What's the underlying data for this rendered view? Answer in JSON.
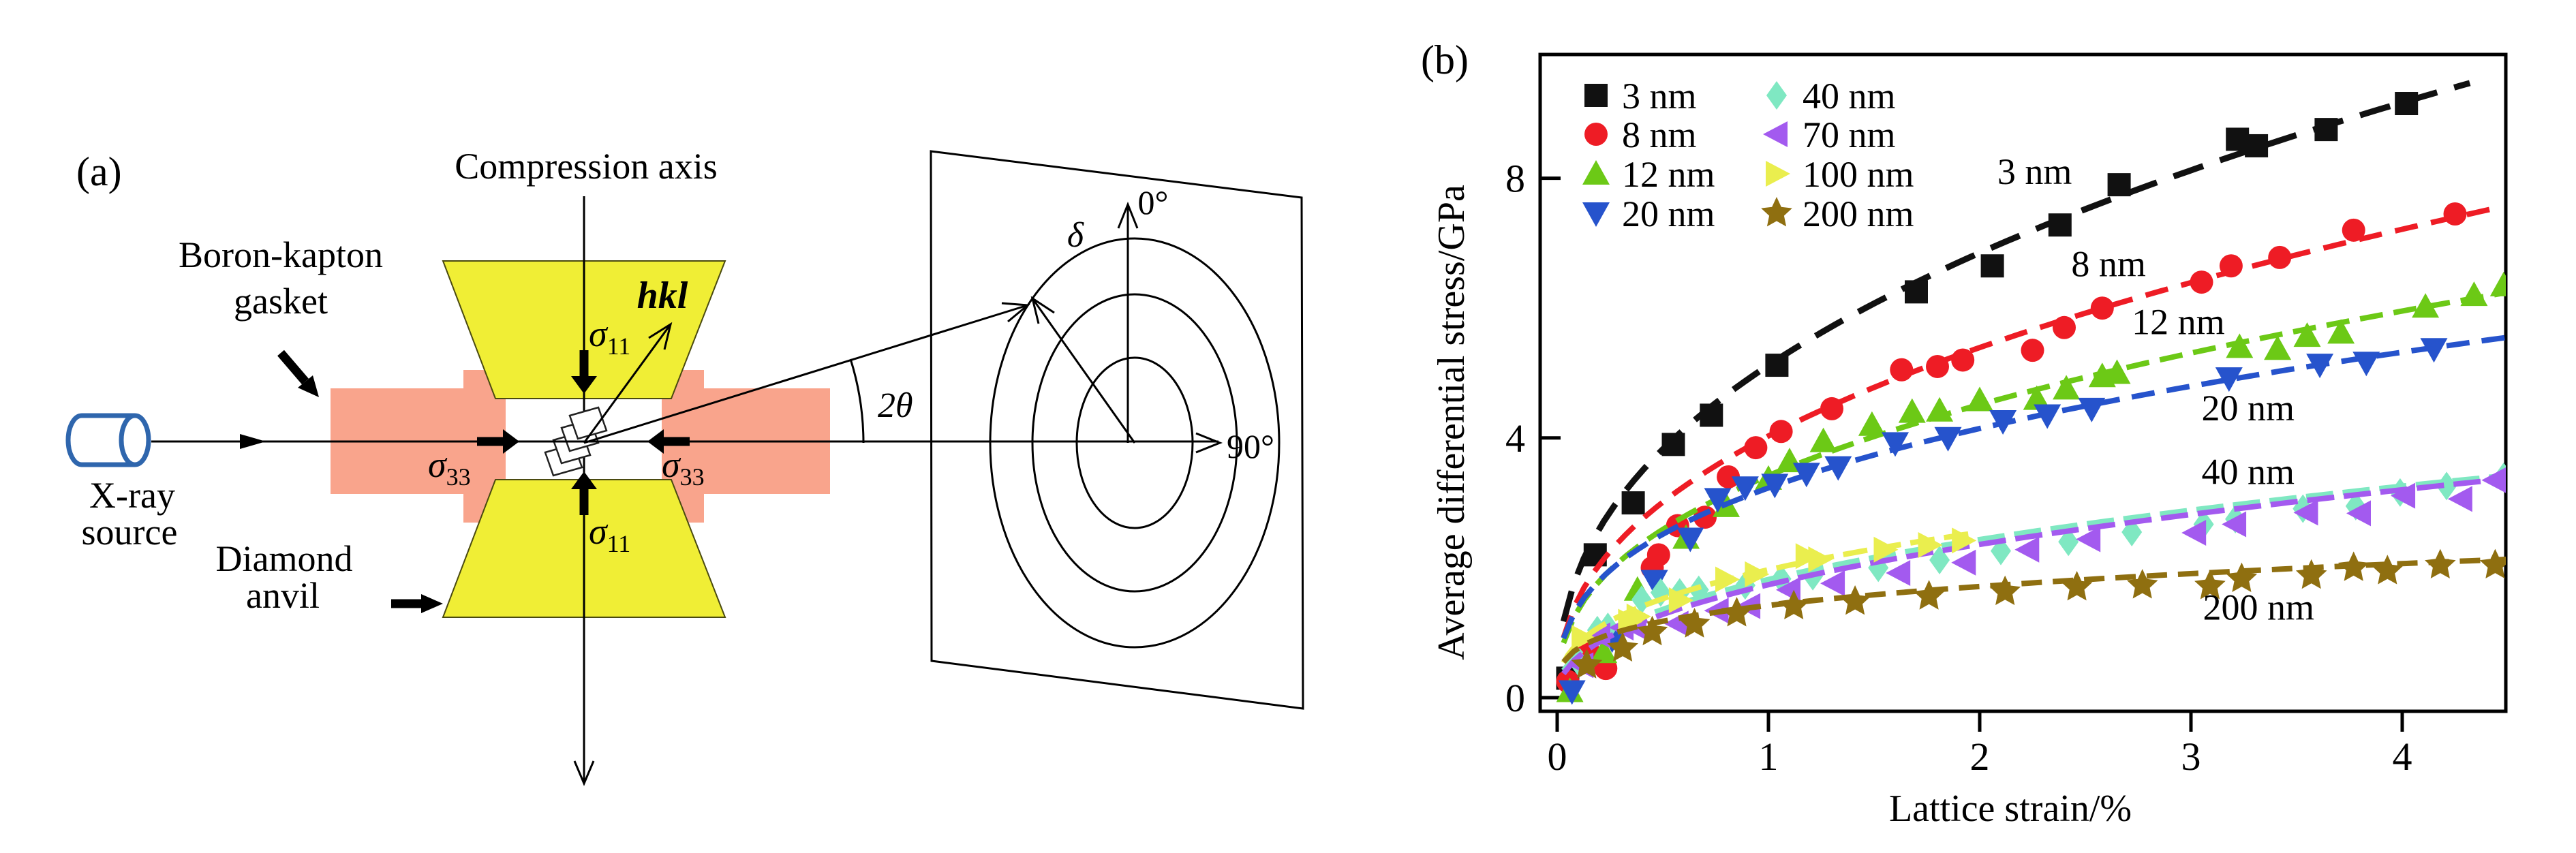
{
  "figure": {
    "panel_a_label": "(a)",
    "panel_b_label": "(b)"
  },
  "diagram": {
    "compression_axis": "Compression axis",
    "gasket_label_line1": "Boron-kapton",
    "gasket_label_line2": "gasket",
    "xray_label_line1": "X-ray",
    "xray_label_line2": "source",
    "anvil_label_line1": "Diamond",
    "anvil_label_line2": "anvil",
    "sigma11": {
      "sym": "σ",
      "sub": "11"
    },
    "sigma33": {
      "sym": "σ",
      "sub": "33"
    },
    "hkl": "hkl",
    "two_theta": "2θ",
    "delta": "δ",
    "deg0": "0°",
    "deg90": "90°",
    "colors": {
      "anvil": "#f0ee35",
      "gasket": "#f9a48c",
      "source_outline": "#2f66ad"
    }
  },
  "chart_data": {
    "type": "scatter",
    "title": "",
    "xlabel": "Lattice strain/%",
    "ylabel": "Average differential stress/GPa",
    "xlim": [
      -0.08,
      4.49
    ],
    "ylim": [
      -0.21,
      9.91
    ],
    "xticks": [
      0,
      1,
      2,
      3,
      4
    ],
    "yticks": [
      0,
      4,
      8
    ],
    "grid": false,
    "legend_position": "upper-left-two-columns",
    "series": [
      {
        "name": "3 nm",
        "color": "#111111",
        "marker": "square",
        "fit": {
          "k": 5.12,
          "n": 0.42,
          "xmax": 4.32
        },
        "dash": [
          46,
          26
        ],
        "line_width": 9,
        "points": [
          [
            0.05,
            0.3
          ],
          [
            0.18,
            2.2
          ],
          [
            0.36,
            3.0
          ],
          [
            0.55,
            3.9
          ],
          [
            0.73,
            4.35
          ],
          [
            1.04,
            5.12
          ],
          [
            1.7,
            6.25
          ],
          [
            2.06,
            6.65
          ],
          [
            2.38,
            7.28
          ],
          [
            2.66,
            7.9
          ],
          [
            3.22,
            8.6
          ],
          [
            3.31,
            8.5
          ],
          [
            3.64,
            8.75
          ],
          [
            4.02,
            9.15
          ]
        ]
      },
      {
        "name": "8 nm",
        "color": "#ee1c25",
        "marker": "circle",
        "fit": {
          "k": 4.03,
          "n": 0.42,
          "xmax": 4.42
        },
        "dash": [
          34,
          20
        ],
        "line_width": 8,
        "points": [
          [
            0.05,
            0.25
          ],
          [
            0.15,
            0.7
          ],
          [
            0.23,
            0.45
          ],
          [
            0.45,
            2.0
          ],
          [
            0.48,
            2.2
          ],
          [
            0.57,
            2.65
          ],
          [
            0.7,
            2.78
          ],
          [
            0.81,
            3.4
          ],
          [
            0.94,
            3.85
          ],
          [
            1.06,
            4.1
          ],
          [
            1.3,
            4.45
          ],
          [
            1.63,
            5.05
          ],
          [
            1.8,
            5.1
          ],
          [
            1.92,
            5.2
          ],
          [
            2.25,
            5.35
          ],
          [
            2.4,
            5.7
          ],
          [
            2.58,
            6.0
          ],
          [
            3.05,
            6.4
          ],
          [
            3.19,
            6.65
          ],
          [
            3.42,
            6.78
          ],
          [
            3.77,
            7.2
          ],
          [
            4.25,
            7.45
          ]
        ]
      },
      {
        "name": "12 nm",
        "color": "#6cc916",
        "marker": "triangle-up",
        "fit": {
          "k": 3.42,
          "n": 0.4,
          "xmax": 4.52
        },
        "dash": [
          34,
          16
        ],
        "line_width": 8,
        "points": [
          [
            0.06,
            0.1
          ],
          [
            0.22,
            0.7
          ],
          [
            0.38,
            1.66
          ],
          [
            0.61,
            2.46
          ],
          [
            0.8,
            2.95
          ],
          [
            1.0,
            3.37
          ],
          [
            1.1,
            3.64
          ],
          [
            1.26,
            3.95
          ],
          [
            1.49,
            4.2
          ],
          [
            1.68,
            4.4
          ],
          [
            1.81,
            4.42
          ],
          [
            2.0,
            4.58
          ],
          [
            2.27,
            4.6
          ],
          [
            2.41,
            4.76
          ],
          [
            2.58,
            4.95
          ],
          [
            2.65,
            5.0
          ],
          [
            3.23,
            5.4
          ],
          [
            3.41,
            5.37
          ],
          [
            3.55,
            5.57
          ],
          [
            3.71,
            5.62
          ],
          [
            4.11,
            6.02
          ],
          [
            4.34,
            6.2
          ],
          [
            4.48,
            6.35
          ]
        ]
      },
      {
        "name": "20 nm",
        "color": "#2653cc",
        "marker": "triangle-down",
        "fit": {
          "k": 3.23,
          "n": 0.36,
          "xmax": 4.52
        },
        "dash": [
          34,
          18
        ],
        "line_width": 8,
        "points": [
          [
            0.07,
            0.1
          ],
          [
            0.26,
            0.9
          ],
          [
            0.46,
            1.8
          ],
          [
            0.63,
            2.45
          ],
          [
            0.76,
            3.06
          ],
          [
            0.89,
            3.24
          ],
          [
            1.03,
            3.28
          ],
          [
            1.18,
            3.45
          ],
          [
            1.33,
            3.55
          ],
          [
            1.6,
            3.92
          ],
          [
            1.85,
            4.0
          ],
          [
            2.11,
            4.26
          ],
          [
            2.32,
            4.35
          ],
          [
            2.53,
            4.45
          ],
          [
            3.18,
            4.92
          ],
          [
            3.61,
            5.13
          ],
          [
            3.83,
            5.16
          ],
          [
            4.15,
            5.37
          ]
        ]
      },
      {
        "name": "40 nm",
        "color": "#7fe8c2",
        "marker": "diamond",
        "fit": {
          "k": 1.82,
          "n": 0.42,
          "xmax": 4.52
        },
        "dash": [
          40,
          14
        ],
        "line_width": 8,
        "points": [
          [
            0.1,
            0.55
          ],
          [
            0.19,
            1.04
          ],
          [
            0.24,
            1.09
          ],
          [
            0.4,
            1.51
          ],
          [
            0.49,
            1.62
          ],
          [
            0.58,
            1.62
          ],
          [
            0.67,
            1.66
          ],
          [
            0.89,
            1.73
          ],
          [
            1.06,
            1.83
          ],
          [
            1.21,
            1.87
          ],
          [
            1.52,
            2.0
          ],
          [
            1.81,
            2.12
          ],
          [
            2.1,
            2.26
          ],
          [
            2.42,
            2.4
          ],
          [
            2.72,
            2.55
          ],
          [
            3.06,
            2.67
          ],
          [
            3.21,
            2.75
          ],
          [
            3.53,
            2.91
          ],
          [
            3.78,
            2.95
          ],
          [
            3.99,
            3.16
          ],
          [
            4.21,
            3.26
          ],
          [
            4.48,
            3.4
          ]
        ]
      },
      {
        "name": "70 nm",
        "color": "#a35aef",
        "marker": "triangle-left",
        "fit": {
          "k": 1.74,
          "n": 0.44,
          "xmax": 4.52
        },
        "dash": [
          40,
          14
        ],
        "line_width": 8,
        "points": [
          [
            0.12,
            0.5
          ],
          [
            0.2,
            0.96
          ],
          [
            0.31,
            1.08
          ],
          [
            0.37,
            1.09
          ],
          [
            0.57,
            1.14
          ],
          [
            0.76,
            1.34
          ],
          [
            0.91,
            1.41
          ],
          [
            1.1,
            1.66
          ],
          [
            1.31,
            1.76
          ],
          [
            1.62,
            1.92
          ],
          [
            1.93,
            2.08
          ],
          [
            2.23,
            2.28
          ],
          [
            2.52,
            2.44
          ],
          [
            3.02,
            2.54
          ],
          [
            3.21,
            2.67
          ],
          [
            3.55,
            2.85
          ],
          [
            3.8,
            2.84
          ],
          [
            4.01,
            3.11
          ],
          [
            4.28,
            3.06
          ],
          [
            4.44,
            3.35
          ]
        ]
      },
      {
        "name": "100 nm",
        "color": "#eaee4e",
        "marker": "triangle-right",
        "fit": {
          "k": 1.97,
          "n": 0.37,
          "xmax": 1.98
        },
        "dash": [
          36,
          14
        ],
        "line_width": 8,
        "points": [
          [
            0.12,
            0.92
          ],
          [
            0.34,
            1.17
          ],
          [
            0.38,
            1.25
          ],
          [
            0.58,
            1.5
          ],
          [
            0.8,
            1.82
          ],
          [
            0.94,
            1.9
          ],
          [
            1.18,
            2.18
          ],
          [
            1.24,
            2.13
          ],
          [
            1.55,
            2.28
          ],
          [
            1.76,
            2.35
          ],
          [
            1.92,
            2.42
          ]
        ]
      },
      {
        "name": "200 nm",
        "color": "#8f6f10",
        "marker": "star",
        "fit": {
          "k": 1.42,
          "n": 0.27,
          "xmax": 4.52
        },
        "dash": [
          30,
          16
        ],
        "line_width": 8,
        "points": [
          [
            0.14,
            0.5
          ],
          [
            0.31,
            0.76
          ],
          [
            0.45,
            1.01
          ],
          [
            0.65,
            1.13
          ],
          [
            0.85,
            1.3
          ],
          [
            1.12,
            1.41
          ],
          [
            1.41,
            1.48
          ],
          [
            1.76,
            1.56
          ],
          [
            2.12,
            1.63
          ],
          [
            2.46,
            1.7
          ],
          [
            2.77,
            1.73
          ],
          [
            3.09,
            1.72
          ],
          [
            3.24,
            1.83
          ],
          [
            3.57,
            1.88
          ],
          [
            3.77,
            2.0
          ],
          [
            3.93,
            1.95
          ],
          [
            4.18,
            2.04
          ],
          [
            4.44,
            2.04
          ]
        ]
      }
    ],
    "annotations": [
      {
        "text": "3 nm",
        "color": "#111111",
        "x": 2.26,
        "y": 7.91
      },
      {
        "text": "8 nm",
        "color": "#ee1c25",
        "x": 2.61,
        "y": 6.49
      },
      {
        "text": "12 nm",
        "color": "#6cc916",
        "x": 2.94,
        "y": 5.6
      },
      {
        "text": "20 nm",
        "color": "#2653cc",
        "x": 3.27,
        "y": 4.27
      },
      {
        "text": "40 nm",
        "color": "#7fe8c2",
        "x": 3.27,
        "y": 3.29
      },
      {
        "text": "200 nm",
        "color": "#8f6f10",
        "x": 3.32,
        "y": 1.2
      }
    ]
  }
}
